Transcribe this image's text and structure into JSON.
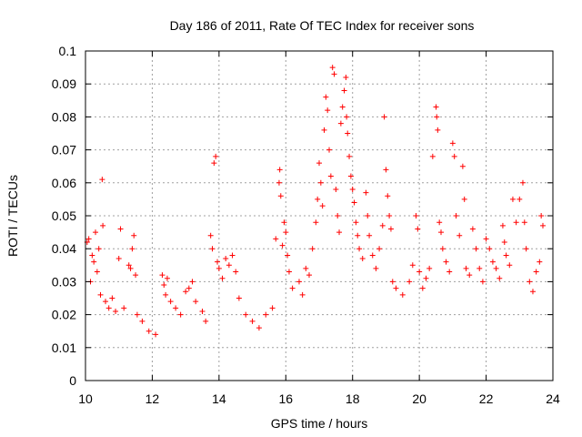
{
  "chart_data": {
    "type": "scatter",
    "title": "Day 186 of 2011, Rate Of TEC Index for receiver sons",
    "xlabel": "GPS time / hours",
    "ylabel": "ROTI / TECUs",
    "xlim": [
      10,
      24
    ],
    "ylim": [
      0,
      0.1
    ],
    "xticks": [
      10,
      12,
      14,
      16,
      18,
      20,
      22,
      24
    ],
    "yticks": [
      0,
      0.01,
      0.02,
      0.03,
      0.04,
      0.05,
      0.06,
      0.07,
      0.08,
      0.09,
      0.1
    ],
    "xtick_labels": [
      "10",
      "12",
      "14",
      "16",
      "18",
      "20",
      "22",
      "24"
    ],
    "ytick_labels": [
      "0",
      "0.01",
      "0.02",
      "0.03",
      "0.04",
      "0.05",
      "0.06",
      "0.07",
      "0.08",
      "0.09",
      "0.1"
    ],
    "grid": true,
    "marker": "+",
    "colors": {
      "points": "#ff0000",
      "grid": "#a0a0a0",
      "axes": "#000000"
    },
    "series": [
      {
        "points": [
          [
            10.05,
            0.042
          ],
          [
            10.1,
            0.043
          ],
          [
            10.15,
            0.03
          ],
          [
            10.2,
            0.038
          ],
          [
            10.25,
            0.036
          ],
          [
            10.3,
            0.045
          ],
          [
            10.35,
            0.033
          ],
          [
            10.4,
            0.04
          ],
          [
            10.45,
            0.026
          ],
          [
            10.5,
            0.061
          ],
          [
            10.52,
            0.047
          ],
          [
            10.6,
            0.024
          ],
          [
            10.7,
            0.022
          ],
          [
            10.8,
            0.025
          ],
          [
            10.9,
            0.021
          ],
          [
            11.0,
            0.037
          ],
          [
            11.05,
            0.046
          ],
          [
            11.15,
            0.022
          ],
          [
            11.3,
            0.035
          ],
          [
            11.35,
            0.034
          ],
          [
            11.4,
            0.04
          ],
          [
            11.45,
            0.044
          ],
          [
            11.5,
            0.032
          ],
          [
            11.55,
            0.02
          ],
          [
            11.7,
            0.018
          ],
          [
            11.9,
            0.015
          ],
          [
            12.1,
            0.014
          ],
          [
            12.3,
            0.032
          ],
          [
            12.35,
            0.029
          ],
          [
            12.4,
            0.026
          ],
          [
            12.45,
            0.031
          ],
          [
            12.55,
            0.024
          ],
          [
            12.7,
            0.022
          ],
          [
            12.85,
            0.02
          ],
          [
            13.0,
            0.027
          ],
          [
            13.1,
            0.028
          ],
          [
            13.2,
            0.03
          ],
          [
            13.3,
            0.024
          ],
          [
            13.5,
            0.021
          ],
          [
            13.6,
            0.018
          ],
          [
            13.75,
            0.044
          ],
          [
            13.8,
            0.04
          ],
          [
            13.85,
            0.066
          ],
          [
            13.9,
            0.068
          ],
          [
            13.95,
            0.036
          ],
          [
            14.0,
            0.034
          ],
          [
            14.1,
            0.031
          ],
          [
            14.2,
            0.037
          ],
          [
            14.3,
            0.035
          ],
          [
            14.4,
            0.038
          ],
          [
            14.5,
            0.033
          ],
          [
            14.6,
            0.025
          ],
          [
            14.8,
            0.02
          ],
          [
            15.0,
            0.018
          ],
          [
            15.2,
            0.016
          ],
          [
            15.4,
            0.02
          ],
          [
            15.6,
            0.022
          ],
          [
            15.7,
            0.043
          ],
          [
            15.8,
            0.06
          ],
          [
            15.82,
            0.064
          ],
          [
            15.85,
            0.056
          ],
          [
            15.9,
            0.041
          ],
          [
            15.95,
            0.048
          ],
          [
            16.0,
            0.045
          ],
          [
            16.05,
            0.038
          ],
          [
            16.1,
            0.033
          ],
          [
            16.2,
            0.028
          ],
          [
            16.4,
            0.03
          ],
          [
            16.5,
            0.026
          ],
          [
            16.6,
            0.034
          ],
          [
            16.7,
            0.032
          ],
          [
            16.8,
            0.04
          ],
          [
            16.9,
            0.048
          ],
          [
            16.95,
            0.055
          ],
          [
            17.0,
            0.066
          ],
          [
            17.05,
            0.06
          ],
          [
            17.1,
            0.053
          ],
          [
            17.15,
            0.076
          ],
          [
            17.2,
            0.086
          ],
          [
            17.25,
            0.082
          ],
          [
            17.3,
            0.07
          ],
          [
            17.35,
            0.062
          ],
          [
            17.4,
            0.095
          ],
          [
            17.45,
            0.093
          ],
          [
            17.5,
            0.058
          ],
          [
            17.55,
            0.05
          ],
          [
            17.6,
            0.045
          ],
          [
            17.65,
            0.078
          ],
          [
            17.7,
            0.083
          ],
          [
            17.75,
            0.088
          ],
          [
            17.8,
            0.092
          ],
          [
            17.82,
            0.08
          ],
          [
            17.85,
            0.075
          ],
          [
            17.9,
            0.068
          ],
          [
            17.95,
            0.062
          ],
          [
            18.0,
            0.058
          ],
          [
            18.05,
            0.054
          ],
          [
            18.1,
            0.048
          ],
          [
            18.15,
            0.044
          ],
          [
            18.2,
            0.04
          ],
          [
            18.3,
            0.037
          ],
          [
            18.4,
            0.057
          ],
          [
            18.45,
            0.05
          ],
          [
            18.5,
            0.044
          ],
          [
            18.6,
            0.038
          ],
          [
            18.7,
            0.034
          ],
          [
            18.8,
            0.04
          ],
          [
            18.9,
            0.047
          ],
          [
            18.95,
            0.08
          ],
          [
            19.0,
            0.064
          ],
          [
            19.05,
            0.056
          ],
          [
            19.1,
            0.05
          ],
          [
            19.15,
            0.046
          ],
          [
            19.2,
            0.03
          ],
          [
            19.3,
            0.028
          ],
          [
            19.5,
            0.026
          ],
          [
            19.7,
            0.03
          ],
          [
            19.8,
            0.035
          ],
          [
            19.9,
            0.05
          ],
          [
            19.95,
            0.046
          ],
          [
            20.0,
            0.033
          ],
          [
            20.1,
            0.028
          ],
          [
            20.2,
            0.031
          ],
          [
            20.3,
            0.034
          ],
          [
            20.4,
            0.068
          ],
          [
            20.5,
            0.083
          ],
          [
            20.52,
            0.08
          ],
          [
            20.55,
            0.076
          ],
          [
            20.6,
            0.048
          ],
          [
            20.65,
            0.045
          ],
          [
            20.7,
            0.04
          ],
          [
            20.8,
            0.036
          ],
          [
            20.9,
            0.033
          ],
          [
            21.0,
            0.072
          ],
          [
            21.05,
            0.068
          ],
          [
            21.1,
            0.05
          ],
          [
            21.2,
            0.044
          ],
          [
            21.3,
            0.065
          ],
          [
            21.35,
            0.055
          ],
          [
            21.4,
            0.034
          ],
          [
            21.5,
            0.032
          ],
          [
            21.6,
            0.046
          ],
          [
            21.7,
            0.04
          ],
          [
            21.8,
            0.034
          ],
          [
            21.9,
            0.03
          ],
          [
            22.0,
            0.043
          ],
          [
            22.1,
            0.04
          ],
          [
            22.2,
            0.036
          ],
          [
            22.3,
            0.034
          ],
          [
            22.4,
            0.031
          ],
          [
            22.5,
            0.047
          ],
          [
            22.55,
            0.042
          ],
          [
            22.6,
            0.038
          ],
          [
            22.7,
            0.035
          ],
          [
            22.8,
            0.055
          ],
          [
            22.9,
            0.048
          ],
          [
            23.0,
            0.055
          ],
          [
            23.1,
            0.06
          ],
          [
            23.15,
            0.048
          ],
          [
            23.2,
            0.04
          ],
          [
            23.3,
            0.03
          ],
          [
            23.4,
            0.027
          ],
          [
            23.5,
            0.033
          ],
          [
            23.6,
            0.036
          ],
          [
            23.65,
            0.05
          ],
          [
            23.7,
            0.047
          ]
        ]
      }
    ]
  }
}
